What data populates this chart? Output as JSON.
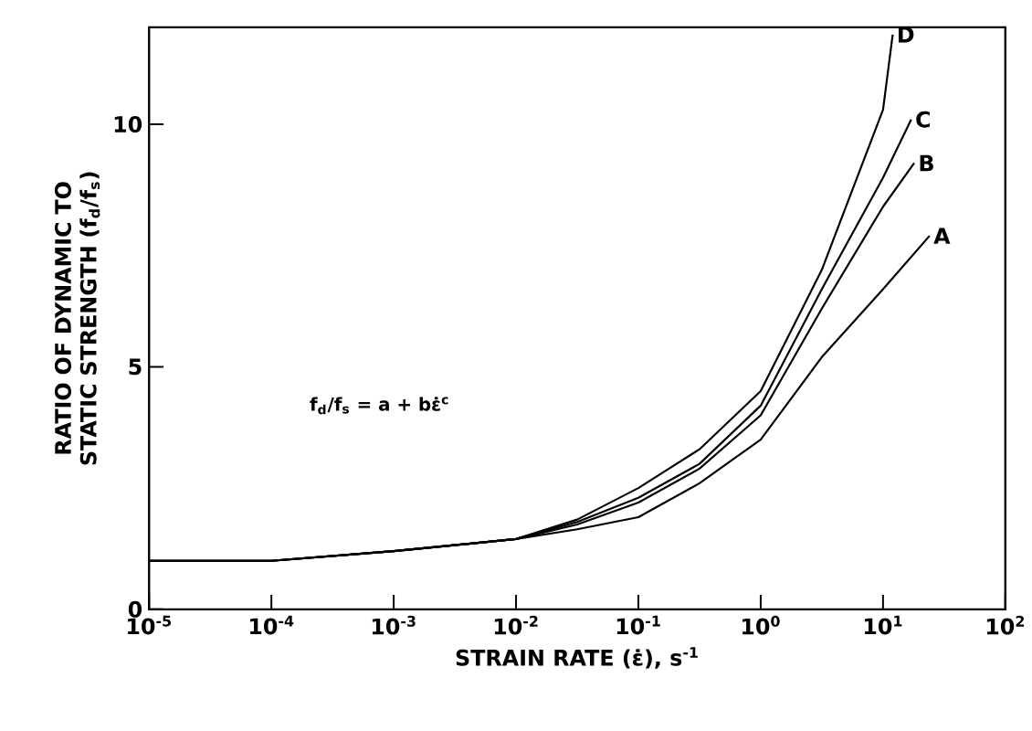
{
  "chart_data": {
    "type": "line",
    "xlabel": "STRAIN RATE (ε̇), s$^{-1}$",
    "ylabel": "RATIO OF DYNAMIC TO STATIC STRENGTH (f$_{d}$/f$_{s}$)",
    "log": "x",
    "xlim": [
      1e-05,
      100
    ],
    "ylim": [
      0,
      12
    ],
    "xticks": [
      {
        "value": 1e-05,
        "label": "10$^{-5}$"
      },
      {
        "value": 0.0001,
        "label": "10$^{-4}$"
      },
      {
        "value": 0.001,
        "label": "10$^{-3}$"
      },
      {
        "value": 0.01,
        "label": "10$^{-2}$"
      },
      {
        "value": 0.1,
        "label": "10$^{-1}$"
      },
      {
        "value": 1,
        "label": "10$^{0}$"
      },
      {
        "value": 10,
        "label": "10$^{1}$"
      },
      {
        "value": 100,
        "label": "10$^{2}$"
      }
    ],
    "yticks": [
      0,
      5,
      10
    ],
    "grid": false,
    "marker": "none",
    "line_style": "solid",
    "annotations": [
      "f$_{d}$/f$_{s}$ = a + bε̇$^{c}$"
    ],
    "series": [
      {
        "name": "A",
        "color": "#000000",
        "x": [
          1e-05,
          0.0001,
          0.001,
          0.01,
          0.0316,
          0.1,
          0.316,
          1,
          3.16,
          10,
          24
        ],
        "values": [
          1.0,
          1.0,
          1.2,
          1.45,
          1.65,
          1.9,
          2.6,
          3.5,
          5.2,
          6.6,
          7.7
        ]
      },
      {
        "name": "B",
        "color": "#000000",
        "x": [
          1e-05,
          0.0001,
          0.001,
          0.01,
          0.0316,
          0.1,
          0.316,
          1,
          3.16,
          10,
          18
        ],
        "values": [
          1.0,
          1.0,
          1.2,
          1.45,
          1.75,
          2.2,
          2.9,
          4.0,
          6.2,
          8.3,
          9.2
        ]
      },
      {
        "name": "C",
        "color": "#000000",
        "x": [
          1e-05,
          0.0001,
          0.001,
          0.01,
          0.0316,
          0.1,
          0.316,
          1,
          3.16,
          10,
          17
        ],
        "values": [
          1.0,
          1.0,
          1.2,
          1.45,
          1.8,
          2.3,
          3.0,
          4.2,
          6.6,
          8.9,
          10.1
        ]
      },
      {
        "name": "D",
        "color": "#000000",
        "x": [
          1e-05,
          0.0001,
          0.001,
          0.01,
          0.0316,
          0.1,
          0.316,
          1,
          3.16,
          10,
          12
        ],
        "values": [
          1.0,
          1.0,
          1.2,
          1.45,
          1.85,
          2.5,
          3.3,
          4.5,
          7.0,
          10.3,
          11.85
        ]
      }
    ]
  }
}
